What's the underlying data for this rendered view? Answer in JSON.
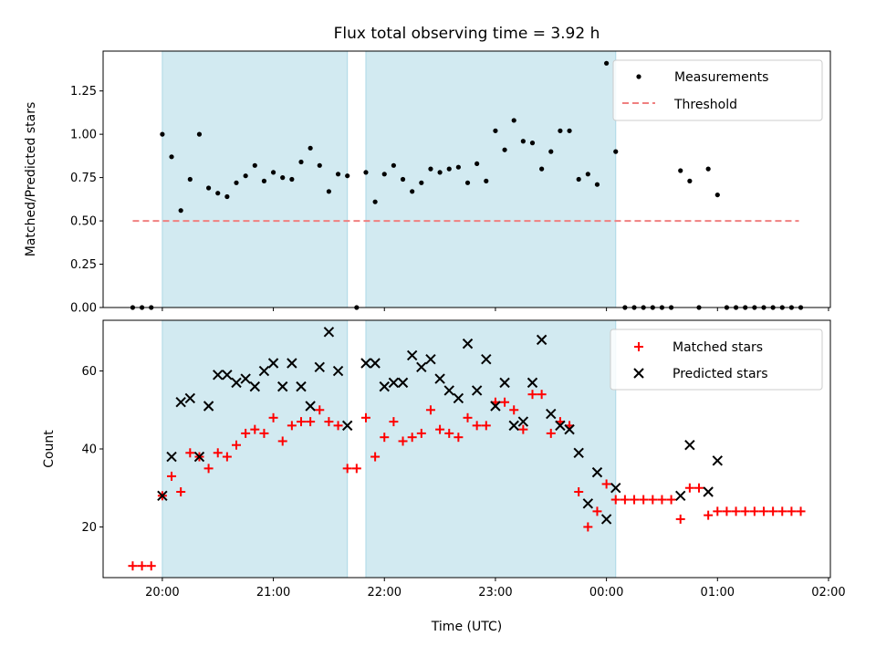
{
  "colors": {
    "band": "#add8e6",
    "measurement": "#000000",
    "threshold": "#f08080",
    "matched": "#ff0000",
    "predicted": "#000000"
  },
  "chart_data": [
    {
      "type": "scatter",
      "title": "Flux total observing time = 3.92 h",
      "xlabel": "",
      "ylabel": "Matched/Predicted stars",
      "ylim": [
        0,
        1.48
      ],
      "yticks": [
        "0.00",
        "0.25",
        "0.50",
        "0.75",
        "1.00",
        "1.25"
      ],
      "ytick_values": [
        0,
        0.25,
        0.5,
        0.75,
        1.0,
        1.25
      ],
      "legend_position": "top-right",
      "legend": [
        "Measurements",
        "Threshold"
      ],
      "threshold": {
        "value": 0.5,
        "x_start": "19:44",
        "x_end": "01:44"
      },
      "observing_windows": [
        {
          "start": "20:00",
          "end": "21:40"
        },
        {
          "start": "21:50",
          "end": "00:05"
        }
      ],
      "series": [
        {
          "name": "Measurements",
          "points": [
            [
              "19:44",
              0
            ],
            [
              "19:49",
              0
            ],
            [
              "19:54",
              0
            ],
            [
              "20:00",
              1.0
            ],
            [
              "20:05",
              0.87
            ],
            [
              "20:10",
              0.56
            ],
            [
              "20:15",
              0.74
            ],
            [
              "20:20",
              1.0
            ],
            [
              "20:25",
              0.69
            ],
            [
              "20:30",
              0.66
            ],
            [
              "20:35",
              0.64
            ],
            [
              "20:40",
              0.72
            ],
            [
              "20:45",
              0.76
            ],
            [
              "20:50",
              0.82
            ],
            [
              "20:55",
              0.73
            ],
            [
              "21:00",
              0.78
            ],
            [
              "21:05",
              0.75
            ],
            [
              "21:10",
              0.74
            ],
            [
              "21:15",
              0.84
            ],
            [
              "21:20",
              0.92
            ],
            [
              "21:25",
              0.82
            ],
            [
              "21:30",
              0.67
            ],
            [
              "21:35",
              0.77
            ],
            [
              "21:40",
              0.76
            ],
            [
              "21:45",
              0
            ],
            [
              "21:50",
              0.78
            ],
            [
              "21:55",
              0.61
            ],
            [
              "22:00",
              0.77
            ],
            [
              "22:05",
              0.82
            ],
            [
              "22:10",
              0.74
            ],
            [
              "22:15",
              0.67
            ],
            [
              "22:20",
              0.72
            ],
            [
              "22:25",
              0.8
            ],
            [
              "22:30",
              0.78
            ],
            [
              "22:35",
              0.8
            ],
            [
              "22:40",
              0.81
            ],
            [
              "22:45",
              0.72
            ],
            [
              "22:50",
              0.83
            ],
            [
              "22:55",
              0.73
            ],
            [
              "23:00",
              1.02
            ],
            [
              "23:05",
              0.91
            ],
            [
              "23:10",
              1.08
            ],
            [
              "23:15",
              0.96
            ],
            [
              "23:20",
              0.95
            ],
            [
              "23:25",
              0.8
            ],
            [
              "23:30",
              0.9
            ],
            [
              "23:35",
              1.02
            ],
            [
              "23:40",
              1.02
            ],
            [
              "23:45",
              0.74
            ],
            [
              "23:50",
              0.77
            ],
            [
              "23:55",
              0.71
            ],
            [
              "00:00",
              1.41
            ],
            [
              "00:05",
              0.9
            ],
            [
              "00:10",
              0
            ],
            [
              "00:15",
              0
            ],
            [
              "00:20",
              0
            ],
            [
              "00:25",
              0
            ],
            [
              "00:30",
              0
            ],
            [
              "00:35",
              0
            ],
            [
              "00:40",
              0.79
            ],
            [
              "00:45",
              0.73
            ],
            [
              "00:50",
              0
            ],
            [
              "00:55",
              0.8
            ],
            [
              "01:00",
              0.65
            ],
            [
              "01:05",
              0
            ],
            [
              "01:10",
              0
            ],
            [
              "01:15",
              0
            ],
            [
              "01:20",
              0
            ],
            [
              "01:25",
              0
            ],
            [
              "01:30",
              0
            ],
            [
              "01:35",
              0
            ],
            [
              "01:40",
              0
            ],
            [
              "01:45",
              0
            ]
          ]
        }
      ]
    },
    {
      "type": "scatter",
      "title": "",
      "xlabel": "Time (UTC)",
      "ylabel": "Count",
      "ylim": [
        7,
        73
      ],
      "yticks": [
        "20",
        "40",
        "60"
      ],
      "ytick_values": [
        20,
        40,
        60
      ],
      "xlim": [
        "19:28",
        "02:00"
      ],
      "xticks": [
        "20:00",
        "21:00",
        "22:00",
        "23:00",
        "00:00",
        "01:00",
        "02:00"
      ],
      "legend_position": "top-right",
      "legend": [
        "Matched stars",
        "Predicted stars"
      ],
      "observing_windows": [
        {
          "start": "20:00",
          "end": "21:40"
        },
        {
          "start": "21:50",
          "end": "00:05"
        }
      ],
      "series": [
        {
          "name": "Matched stars",
          "marker": "plus",
          "points": [
            [
              "19:44",
              10
            ],
            [
              "19:49",
              10
            ],
            [
              "19:54",
              10
            ],
            [
              "20:00",
              28
            ],
            [
              "20:05",
              33
            ],
            [
              "20:10",
              29
            ],
            [
              "20:15",
              39
            ],
            [
              "20:20",
              38
            ],
            [
              "20:25",
              35
            ],
            [
              "20:30",
              39
            ],
            [
              "20:35",
              38
            ],
            [
              "20:40",
              41
            ],
            [
              "20:45",
              44
            ],
            [
              "20:50",
              45
            ],
            [
              "20:55",
              44
            ],
            [
              "21:00",
              48
            ],
            [
              "21:05",
              42
            ],
            [
              "21:10",
              46
            ],
            [
              "21:15",
              47
            ],
            [
              "21:20",
              47
            ],
            [
              "21:25",
              50
            ],
            [
              "21:30",
              47
            ],
            [
              "21:35",
              46
            ],
            [
              "21:40",
              35
            ],
            [
              "21:45",
              35
            ],
            [
              "21:50",
              48
            ],
            [
              "21:55",
              38
            ],
            [
              "22:00",
              43
            ],
            [
              "22:05",
              47
            ],
            [
              "22:10",
              42
            ],
            [
              "22:15",
              43
            ],
            [
              "22:20",
              44
            ],
            [
              "22:25",
              50
            ],
            [
              "22:30",
              45
            ],
            [
              "22:35",
              44
            ],
            [
              "22:40",
              43
            ],
            [
              "22:45",
              48
            ],
            [
              "22:50",
              46
            ],
            [
              "22:55",
              46
            ],
            [
              "23:00",
              52
            ],
            [
              "23:05",
              52
            ],
            [
              "23:10",
              50
            ],
            [
              "23:15",
              45
            ],
            [
              "23:20",
              54
            ],
            [
              "23:25",
              54
            ],
            [
              "23:30",
              44
            ],
            [
              "23:35",
              47
            ],
            [
              "23:40",
              46
            ],
            [
              "23:45",
              29
            ],
            [
              "23:50",
              20
            ],
            [
              "23:55",
              24
            ],
            [
              "00:00",
              31
            ],
            [
              "00:05",
              27
            ],
            [
              "00:10",
              27
            ],
            [
              "00:15",
              27
            ],
            [
              "00:20",
              27
            ],
            [
              "00:25",
              27
            ],
            [
              "00:30",
              27
            ],
            [
              "00:35",
              27
            ],
            [
              "00:40",
              22
            ],
            [
              "00:45",
              30
            ],
            [
              "00:50",
              30
            ],
            [
              "00:55",
              23
            ],
            [
              "01:00",
              24
            ],
            [
              "01:05",
              24
            ],
            [
              "01:10",
              24
            ],
            [
              "01:15",
              24
            ],
            [
              "01:20",
              24
            ],
            [
              "01:25",
              24
            ],
            [
              "01:30",
              24
            ],
            [
              "01:35",
              24
            ],
            [
              "01:40",
              24
            ],
            [
              "01:45",
              24
            ]
          ]
        },
        {
          "name": "Predicted stars",
          "marker": "x",
          "points": [
            [
              "20:00",
              28
            ],
            [
              "20:05",
              38
            ],
            [
              "20:10",
              52
            ],
            [
              "20:15",
              53
            ],
            [
              "20:20",
              38
            ],
            [
              "20:25",
              51
            ],
            [
              "20:30",
              59
            ],
            [
              "20:35",
              59
            ],
            [
              "20:40",
              57
            ],
            [
              "20:45",
              58
            ],
            [
              "20:50",
              56
            ],
            [
              "20:55",
              60
            ],
            [
              "21:00",
              62
            ],
            [
              "21:05",
              56
            ],
            [
              "21:10",
              62
            ],
            [
              "21:15",
              56
            ],
            [
              "21:20",
              51
            ],
            [
              "21:25",
              61
            ],
            [
              "21:30",
              70
            ],
            [
              "21:35",
              60
            ],
            [
              "21:40",
              46
            ],
            [
              "21:50",
              62
            ],
            [
              "21:55",
              62
            ],
            [
              "22:00",
              56
            ],
            [
              "22:05",
              57
            ],
            [
              "22:10",
              57
            ],
            [
              "22:15",
              64
            ],
            [
              "22:20",
              61
            ],
            [
              "22:25",
              63
            ],
            [
              "22:30",
              58
            ],
            [
              "22:35",
              55
            ],
            [
              "22:40",
              53
            ],
            [
              "22:45",
              67
            ],
            [
              "22:50",
              55
            ],
            [
              "22:55",
              63
            ],
            [
              "23:00",
              51
            ],
            [
              "23:05",
              57
            ],
            [
              "23:10",
              46
            ],
            [
              "23:15",
              47
            ],
            [
              "23:20",
              57
            ],
            [
              "23:25",
              68
            ],
            [
              "23:30",
              49
            ],
            [
              "23:35",
              46
            ],
            [
              "23:40",
              45
            ],
            [
              "23:45",
              39
            ],
            [
              "23:50",
              26
            ],
            [
              "23:55",
              34
            ],
            [
              "00:00",
              22
            ],
            [
              "00:05",
              30
            ],
            [
              "00:40",
              28
            ],
            [
              "00:45",
              41
            ],
            [
              "00:55",
              29
            ],
            [
              "01:00",
              37
            ]
          ]
        }
      ]
    }
  ]
}
